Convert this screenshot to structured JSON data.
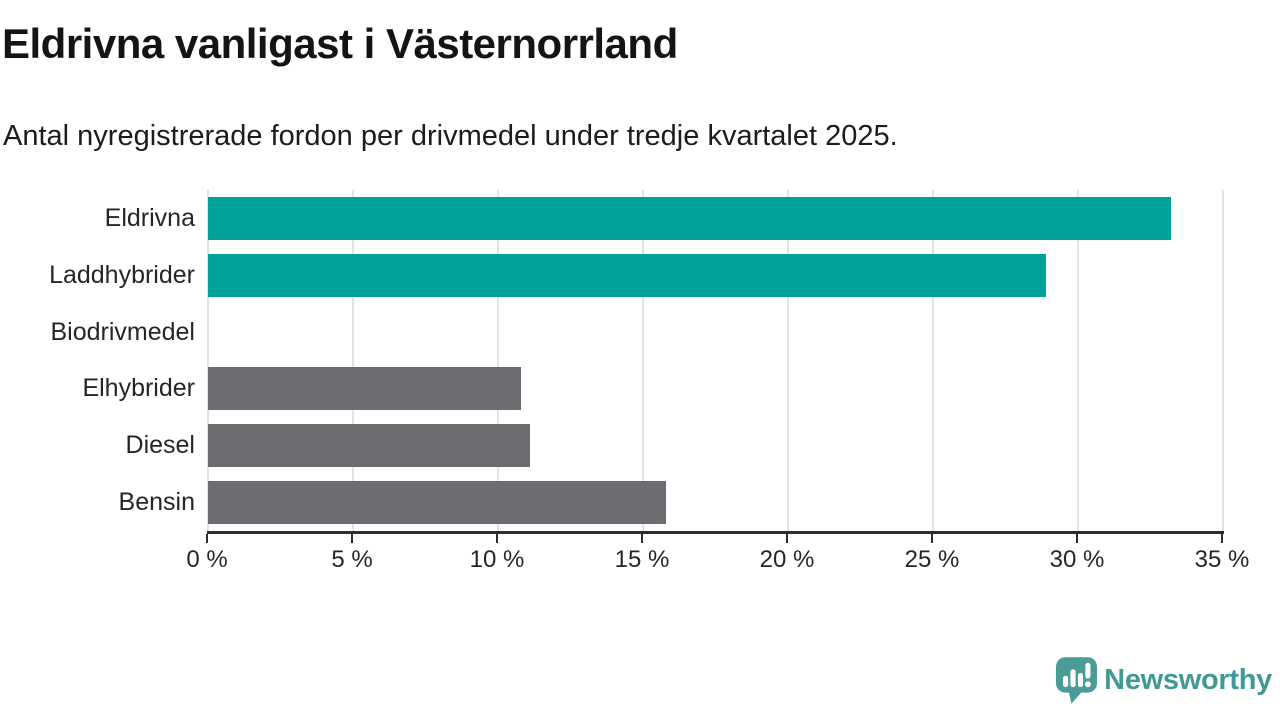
{
  "chart_data": {
    "type": "bar",
    "orientation": "horizontal",
    "title": "Eldrivna vanligast i Västernorrland",
    "subtitle": "Antal nyregistrerade fordon per drivmedel under tredje kvartalet 2025.",
    "categories": [
      "Eldrivna",
      "Laddhybrider",
      "Biodrivmedel",
      "Elhybrider",
      "Diesel",
      "Bensin"
    ],
    "values": [
      33.2,
      28.9,
      0,
      10.8,
      11.1,
      15.8
    ],
    "bar_colors": [
      "#00a39b",
      "#00a39b",
      "#6d6d71",
      "#6d6d71",
      "#6d6d71",
      "#6d6d71"
    ],
    "highlight_color": "#00a39b",
    "default_color": "#6d6d71",
    "xlabel": "",
    "ylabel": "",
    "xlim": [
      0,
      35
    ],
    "xticks": [
      0,
      5,
      10,
      15,
      20,
      25,
      30,
      35
    ],
    "xtick_labels": [
      "0 %",
      "5 %",
      "10 %",
      "15 %",
      "20 %",
      "25 %",
      "30 %",
      "35 %"
    ],
    "grid": true,
    "legend": false
  },
  "footer": {
    "brand": "Newsworthy",
    "brand_color": "#3f9a96",
    "icon_color": "#4a9c98"
  }
}
